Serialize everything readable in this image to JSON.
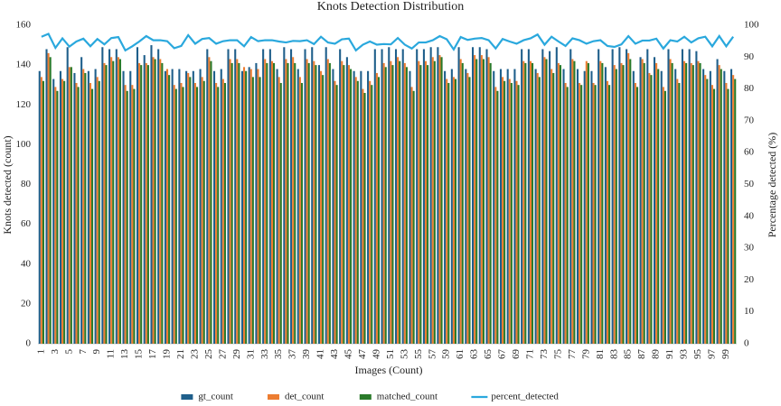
{
  "chart_data": {
    "type": "bar",
    "title": "Knots Detection Distribution",
    "x_label": "Images (Count)",
    "y_label": "Knots detected (count)",
    "y2_label": "Percentage detected (%)",
    "categories": [
      1,
      null,
      3,
      null,
      5,
      null,
      7,
      null,
      9,
      null,
      11,
      null,
      13,
      null,
      15,
      null,
      17,
      null,
      19,
      null,
      21,
      null,
      23,
      null,
      25,
      null,
      27,
      null,
      29,
      null,
      31,
      null,
      33,
      null,
      35,
      null,
      37,
      null,
      39,
      null,
      41,
      null,
      43,
      null,
      45,
      null,
      47,
      null,
      49,
      null,
      51,
      null,
      53,
      null,
      55,
      null,
      57,
      null,
      59,
      null,
      61,
      null,
      63,
      null,
      65,
      null,
      67,
      null,
      69,
      null,
      71,
      null,
      73,
      null,
      75,
      null,
      77,
      null,
      79,
      null,
      81,
      null,
      83,
      null,
      85,
      null,
      87,
      null,
      89,
      null,
      91,
      null,
      93,
      null,
      95,
      null,
      97,
      null,
      99,
      null
    ],
    "ylim": [
      0,
      160
    ],
    "yticks": [
      0,
      20,
      40,
      60,
      80,
      100,
      120,
      140,
      160
    ],
    "y2lim": [
      0,
      100
    ],
    "y2ticks": [
      0,
      10,
      20,
      30,
      40,
      50,
      60,
      70,
      80,
      90,
      100
    ],
    "legend": "bottom",
    "series": [
      {
        "name": "gt_count",
        "color": "#1f5f8b",
        "values": [
          137,
          148,
          133,
          137,
          149,
          136,
          144,
          137,
          138,
          149,
          148,
          148,
          137,
          137,
          149,
          145,
          150,
          148,
          137,
          138,
          138,
          137,
          137,
          138,
          148,
          137,
          138,
          148,
          148,
          137,
          139,
          141,
          148,
          148,
          138,
          149,
          148,
          138,
          148,
          149,
          140,
          149,
          138,
          148,
          144,
          137,
          137,
          137,
          148,
          148,
          149,
          148,
          148,
          137,
          148,
          148,
          149,
          149,
          137,
          138,
          149,
          138,
          149,
          149,
          148,
          137,
          138,
          138,
          138,
          148,
          148,
          138,
          148,
          147,
          149,
          138,
          148,
          138,
          137,
          137,
          148,
          139,
          148,
          149,
          148,
          137,
          144,
          148,
          144,
          137,
          148,
          138,
          148,
          148,
          147,
          138,
          137,
          143,
          137,
          138
        ]
      },
      {
        "name": "det_count",
        "color": "#ed7d31",
        "values": [
          134,
          146,
          129,
          133,
          139,
          131,
          138,
          131,
          134,
          141,
          144,
          144,
          130,
          130,
          141,
          141,
          144,
          143,
          138,
          130,
          131,
          136,
          131,
          134,
          144,
          131,
          133,
          143,
          143,
          139,
          138,
          138,
          143,
          142,
          134,
          143,
          144,
          134,
          143,
          142,
          137,
          143,
          132,
          142,
          140,
          134,
          128,
          132,
          136,
          141,
          142,
          144,
          141,
          129,
          142,
          142,
          144,
          145,
          133,
          134,
          143,
          136,
          145,
          145,
          144,
          129,
          134,
          133,
          132,
          142,
          142,
          136,
          144,
          138,
          141,
          131,
          143,
          131,
          142,
          131,
          142,
          132,
          140,
          141,
          146,
          131,
          143,
          136,
          141,
          129,
          143,
          133,
          142,
          141,
          142,
          135,
          130,
          140,
          131,
          135
        ]
      },
      {
        "name": "matched_count",
        "color": "#2a7a2a",
        "values": [
          132,
          144,
          127,
          132,
          139,
          129,
          136,
          128,
          132,
          140,
          142,
          143,
          127,
          128,
          140,
          140,
          143,
          141,
          135,
          128,
          129,
          134,
          129,
          132,
          142,
          129,
          131,
          141,
          141,
          137,
          134,
          134,
          141,
          141,
          131,
          141,
          141,
          131,
          141,
          140,
          135,
          141,
          130,
          140,
          138,
          132,
          126,
          130,
          134,
          139,
          140,
          142,
          139,
          127,
          140,
          140,
          142,
          144,
          131,
          133,
          141,
          134,
          143,
          143,
          141,
          127,
          132,
          131,
          130,
          141,
          141,
          134,
          143,
          136,
          140,
          129,
          142,
          130,
          141,
          130,
          141,
          130,
          138,
          140,
          143,
          129,
          141,
          135,
          138,
          127,
          141,
          131,
          141,
          140,
          141,
          133,
          128,
          138,
          128,
          133
        ]
      },
      {
        "name": "percent_detected",
        "color": "#2aa8dd",
        "type": "line",
        "axis": "y2",
        "values": [
          96.4,
          97.3,
          92.9,
          95.9,
          93.3,
          94.9,
          95.8,
          93.4,
          95.7,
          94.0,
          96.0,
          96.3,
          92.1,
          93.4,
          94.9,
          96.6,
          95.3,
          95.3,
          95.0,
          92.8,
          93.5,
          96.9,
          94.2,
          95.7,
          96.0,
          94.2,
          95.0,
          95.3,
          95.3,
          93.4,
          96.3,
          95.0,
          95.3,
          95.3,
          94.9,
          94.6,
          95.1,
          95.0,
          95.3,
          94.1,
          96.4,
          94.6,
          94.2,
          95.6,
          95.8,
          92.1,
          93.9,
          94.9,
          93.9,
          94.1,
          94.0,
          96.0,
          93.9,
          92.7,
          94.6,
          94.6,
          95.3,
          96.6,
          95.6,
          92.4,
          96.3,
          95.4,
          95.8,
          96.0,
          95.3,
          92.7,
          95.7,
          94.9,
          94.2,
          95.3,
          95.9,
          97.1,
          93.9,
          96.4,
          94.9,
          93.5,
          95.9,
          95.3,
          94.2,
          95.0,
          95.3,
          93.5,
          93.2,
          94.0,
          96.6,
          94.2,
          95.2,
          95.2,
          95.8,
          92.7,
          95.3,
          94.9,
          96.4,
          94.6,
          95.9,
          96.4,
          93.4,
          96.6,
          93.4,
          96.4
        ]
      }
    ]
  }
}
